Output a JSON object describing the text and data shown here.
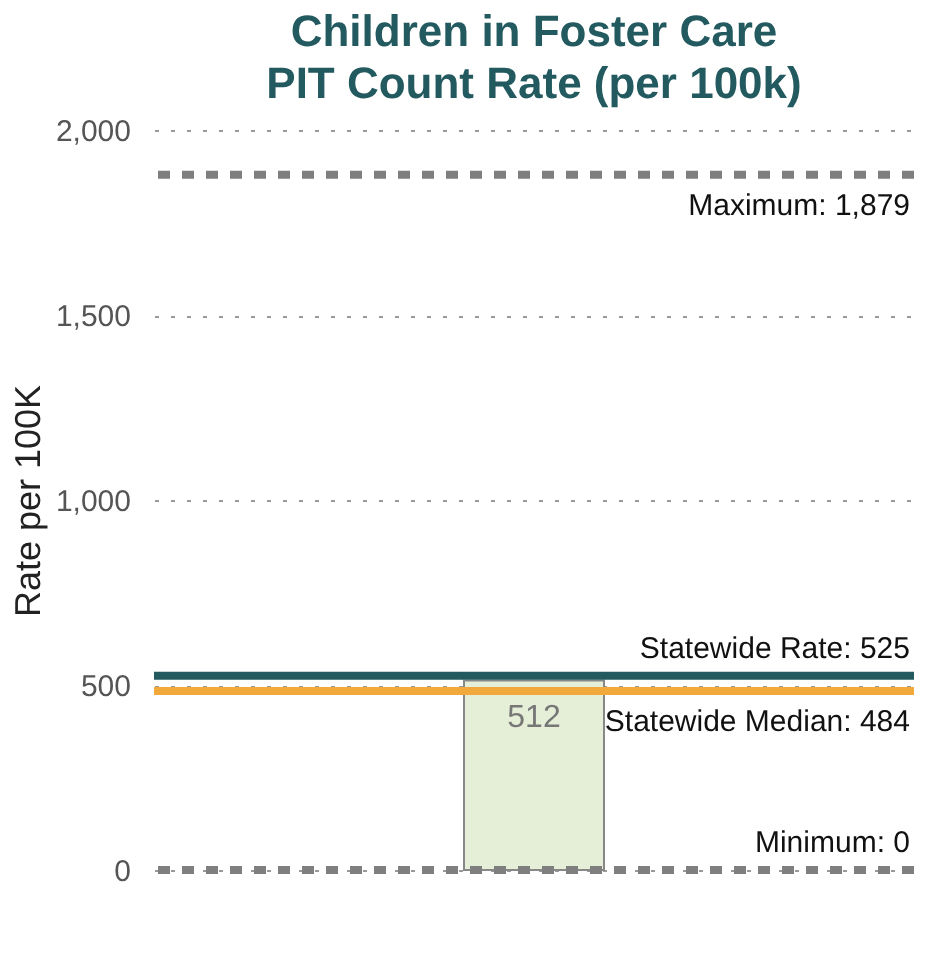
{
  "chart_data": {
    "type": "bar",
    "title": "Children in Foster Care PIT Count Rate (per 100k)",
    "ylabel": "Rate per 100K",
    "categories": [
      null
    ],
    "values": [
      512
    ],
    "color": "#e5eed7",
    "data_labels": true,
    "ylim": [
      0,
      2000
    ],
    "yticks": [
      0,
      500,
      {
        "value": 1000,
        "label": "1,000"
      },
      {
        "value": 1500,
        "label": "1,500"
      },
      {
        "value": 2000,
        "label": "2,000"
      }
    ],
    "grid": "y",
    "ref_lines": [
      {
        "axis": "y",
        "value": 1879,
        "label": "Maximum: 1,879",
        "color": "#7f7f7f",
        "line_style": "dashed"
      },
      {
        "axis": "y",
        "value": 525,
        "label": "Statewide Rate: 525",
        "color": "#235a60",
        "line_style": "solid"
      },
      {
        "axis": "y",
        "value": 484,
        "label": "Statewide Median: 484",
        "color": "#f2a93b",
        "line_style": "solid"
      },
      {
        "axis": "y",
        "value": 0,
        "label": "Minimum: 0",
        "color": "#7f7f7f",
        "line_style": "dashed"
      }
    ]
  }
}
